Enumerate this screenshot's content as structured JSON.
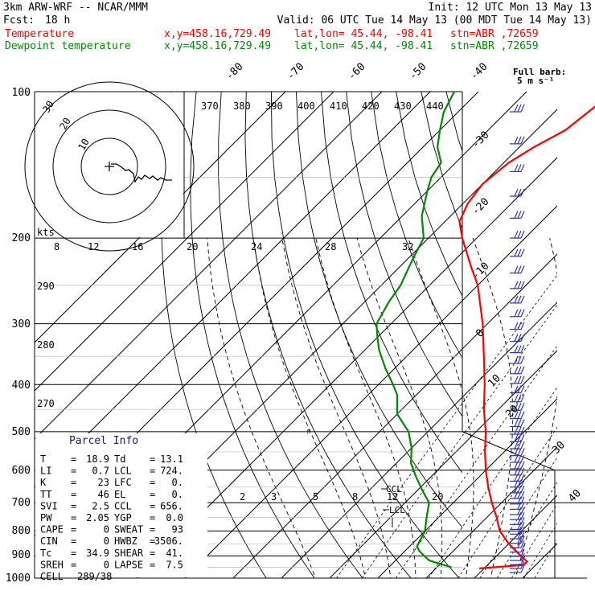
{
  "header": {
    "model": "3km ARW-WRF -- NCAR/MMM",
    "init": "Init: 12 UTC Mon 13 May 13",
    "fcst_label": "Fcst:",
    "fcst_value": "18 h",
    "valid": "Valid: 06 UTC Tue 14 May 13 (00 MDT Tue 14 May 13)"
  },
  "legend": {
    "temperature": {
      "label": "Temperature",
      "xy": "x,y=458.16,729.49",
      "latlon": "lat,lon= 45.44, -98.41",
      "stn": "stn=ABR ,72659"
    },
    "dewpoint": {
      "label": "Dewpoint temperature",
      "xy": "x,y=458.16,729.49",
      "latlon": "lat,lon= 45.44, -98.41",
      "stn": "stn=ABR ,72659"
    }
  },
  "colors": {
    "temperature": "#ff0000",
    "dewpoint": "#008a00",
    "wind_barb": "#3333aa",
    "hodograph": "#000000"
  },
  "wind": {
    "title": "Full barb:",
    "subtitle": "5 m s⁻¹"
  },
  "hodograph": {
    "units": "kts",
    "ring_labels": [
      "10",
      "20",
      "30"
    ]
  },
  "parcel": {
    "title": "Parcel Info",
    "rows": [
      {
        "l1": "T",
        "v1": "18.9",
        "l2": "Td",
        "v2": "13.1"
      },
      {
        "l1": "LI",
        "v1": "0.7",
        "l2": "LCL",
        "v2": "724."
      },
      {
        "l1": "K",
        "v1": "23",
        "l2": "LFC",
        "v2": "0."
      },
      {
        "l1": "TT",
        "v1": "46",
        "l2": "EL",
        "v2": "0."
      },
      {
        "l1": "SVI",
        "v1": "2.5",
        "l2": "CCL",
        "v2": "656."
      },
      {
        "l1": "PW",
        "v1": "2.05",
        "l2": "YGP",
        "v2": "0.0"
      },
      {
        "l1": "CAPE",
        "v1": "0",
        "l2": "SWEAT",
        "v2": "93"
      },
      {
        "l1": "CIN",
        "v1": "0",
        "l2": "HWBZ",
        "v2": "3506."
      },
      {
        "l1": "Tc",
        "v1": "34.9",
        "l2": "SHEAR",
        "v2": "41."
      },
      {
        "l1": "SREH",
        "v1": "0",
        "l2": "LAPSE",
        "v2": "7.5"
      }
    ],
    "cell_label": "CELL",
    "cell_value": "289/38"
  },
  "chart_data": {
    "type": "line",
    "ylim": [
      1000,
      100
    ],
    "xlim": [
      -40,
      40
    ],
    "pressure_labels": [
      "100",
      "200",
      "300",
      "400",
      "500",
      "600",
      "700",
      "800",
      "900",
      "1000"
    ],
    "temp_labels": [
      "-80",
      "-70",
      "-60",
      "-50",
      "-40",
      "-30",
      "-20",
      "-10",
      "0",
      "10",
      "20",
      "30",
      "40"
    ],
    "theta_labels": [
      "370",
      "380",
      "390",
      "400",
      "410",
      "420",
      "430",
      "440"
    ],
    "theta_left_labels": [
      "290",
      "280",
      "270"
    ],
    "mixing_ratio_top": [
      "8",
      "12",
      "16",
      "20",
      "24",
      "28",
      "32"
    ],
    "mixing_ratio_low": [
      "2",
      "3",
      "5",
      "8",
      "12",
      "20"
    ],
    "markers": {
      "ccl": "CCL",
      "lcl": "LCL"
    },
    "series": [
      {
        "name": "Temperature",
        "points": [
          [
            955,
            19
          ],
          [
            940,
            27.5
          ],
          [
            925,
            27.5
          ],
          [
            900,
            25
          ],
          [
            850,
            20
          ],
          [
            800,
            15.5
          ],
          [
            750,
            12
          ],
          [
            700,
            8
          ],
          [
            650,
            4
          ],
          [
            600,
            0
          ],
          [
            550,
            -4
          ],
          [
            500,
            -8
          ],
          [
            450,
            -13
          ],
          [
            400,
            -18
          ],
          [
            350,
            -24
          ],
          [
            300,
            -31
          ],
          [
            250,
            -40
          ],
          [
            230,
            -45
          ],
          [
            200,
            -53
          ],
          [
            185,
            -57
          ],
          [
            170,
            -59
          ],
          [
            155,
            -60
          ],
          [
            140,
            -59
          ],
          [
            130,
            -57
          ],
          [
            120,
            -54
          ],
          [
            110,
            -53
          ],
          [
            100,
            -52
          ]
        ]
      },
      {
        "name": "Dewpoint temperature",
        "points": [
          [
            950,
            13
          ],
          [
            930,
            9
          ],
          [
            920,
            7
          ],
          [
            900,
            5
          ],
          [
            880,
            3
          ],
          [
            860,
            1.5
          ],
          [
            840,
            1
          ],
          [
            800,
            0
          ],
          [
            780,
            -1
          ],
          [
            740,
            -3
          ],
          [
            700,
            -5
          ],
          [
            660,
            -9
          ],
          [
            620,
            -13
          ],
          [
            580,
            -17
          ],
          [
            540,
            -20
          ],
          [
            500,
            -24
          ],
          [
            460,
            -30
          ],
          [
            420,
            -34
          ],
          [
            400,
            -37
          ],
          [
            370,
            -42
          ],
          [
            340,
            -47
          ],
          [
            320,
            -50
          ],
          [
            300,
            -53
          ],
          [
            270,
            -55
          ],
          [
            250,
            -56
          ],
          [
            220,
            -59
          ],
          [
            200,
            -61
          ],
          [
            180,
            -66
          ],
          [
            160,
            -70
          ],
          [
            150,
            -72
          ],
          [
            140,
            -73
          ],
          [
            130,
            -77
          ],
          [
            120,
            -80
          ],
          [
            110,
            -83
          ],
          [
            100,
            -85
          ]
        ]
      }
    ]
  }
}
